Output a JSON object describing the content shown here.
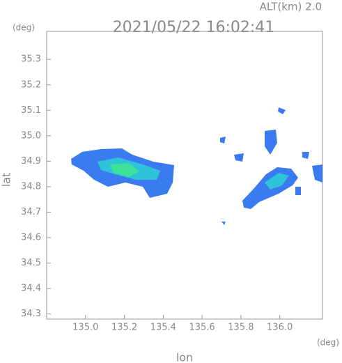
{
  "chart_data": {
    "type": "radar-map",
    "title": "2021/05/22 16:02:41",
    "altitude_label": "ALT(km) 2.0",
    "y_unit": "(deg)",
    "x_unit": "(deg)",
    "xlabel": "lon",
    "ylabel": "lat",
    "xlim": [
      134.8,
      136.22
    ],
    "ylim": [
      34.28,
      35.41
    ],
    "xticks": [
      {
        "value": 135,
        "label": "135.0"
      },
      135.2,
      135.4,
      135.6,
      135.8,
      {
        "value": 136,
        "label": "136.0"
      }
    ],
    "yticks": [
      35.3,
      35.2,
      35.1,
      {
        "value": 35,
        "label": "35.0"
      },
      34.9,
      34.8,
      34.7,
      34.6,
      34.5,
      34.4,
      34.3
    ]
  }
}
